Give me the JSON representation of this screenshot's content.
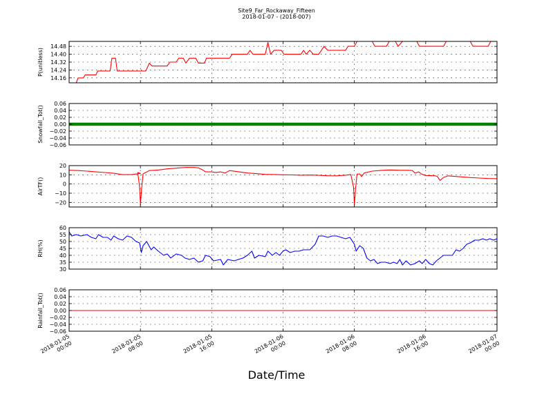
{
  "header": {
    "title": "Site9_Far_Rockaway_Fifteen",
    "subtitle": "2018-01-07 - (2018-007)"
  },
  "chart_data": {
    "type": "line",
    "title": "Site9_Far_Rockaway_Fifteen",
    "subtitle": "2018-01-07 - (2018-007)",
    "xlabel": "Date/Time",
    "x_range_hours": [
      0,
      48
    ],
    "x_ticks": [
      {
        "hours": 0,
        "label": "2018-01-05\n00:00"
      },
      {
        "hours": 8,
        "label": "2018-01-05\n08:00"
      },
      {
        "hours": 16,
        "label": "2018-01-05\n16:00"
      },
      {
        "hours": 24,
        "label": "2018-01-06\n00:00"
      },
      {
        "hours": 32,
        "label": "2018-01-06\n08:00"
      },
      {
        "hours": 40,
        "label": "2018-01-06\n16:00"
      },
      {
        "hours": 48,
        "label": "2018-01-07\n00:00"
      }
    ],
    "grid": true,
    "panels": [
      {
        "id": "p",
        "ylabel": "P(unitless)",
        "ylim": [
          14.11,
          14.53
        ],
        "yticks": [
          14.16,
          14.24,
          14.32,
          14.4,
          14.48
        ],
        "ytick_labels": [
          "14.16",
          "14.24",
          "14.32",
          "14.40",
          "14.48"
        ],
        "color": "#ff0000",
        "style": "line",
        "series": [
          [
            0,
            14.11
          ],
          [
            0.8,
            14.11
          ],
          [
            1.0,
            14.16
          ],
          [
            1.6,
            14.16
          ],
          [
            1.8,
            14.19
          ],
          [
            3.0,
            14.19
          ],
          [
            3.2,
            14.23
          ],
          [
            4.6,
            14.23
          ],
          [
            4.8,
            14.36
          ],
          [
            5.2,
            14.36
          ],
          [
            5.4,
            14.23
          ],
          [
            8.6,
            14.23
          ],
          [
            9.0,
            14.31
          ],
          [
            9.3,
            14.28
          ],
          [
            11.0,
            14.28
          ],
          [
            11.3,
            14.32
          ],
          [
            12.0,
            14.32
          ],
          [
            12.3,
            14.36
          ],
          [
            12.8,
            14.36
          ],
          [
            13.1,
            14.31
          ],
          [
            13.5,
            14.36
          ],
          [
            14.2,
            14.36
          ],
          [
            14.5,
            14.31
          ],
          [
            15.2,
            14.31
          ],
          [
            15.4,
            14.36
          ],
          [
            18.0,
            14.36
          ],
          [
            18.3,
            14.4
          ],
          [
            20.0,
            14.4
          ],
          [
            20.3,
            14.44
          ],
          [
            20.6,
            14.4
          ],
          [
            22.0,
            14.4
          ],
          [
            22.3,
            14.52
          ],
          [
            22.6,
            14.4
          ],
          [
            23.0,
            14.44
          ],
          [
            23.8,
            14.44
          ],
          [
            24.1,
            14.4
          ],
          [
            26.0,
            14.4
          ],
          [
            26.3,
            14.44
          ],
          [
            26.6,
            14.4
          ],
          [
            27.0,
            14.44
          ],
          [
            27.4,
            14.4
          ],
          [
            28.0,
            14.4
          ],
          [
            28.3,
            14.44
          ],
          [
            28.6,
            14.48
          ],
          [
            29.0,
            14.44
          ],
          [
            31.0,
            14.44
          ],
          [
            31.3,
            14.48
          ],
          [
            32.0,
            14.48
          ],
          [
            32.3,
            14.53
          ],
          [
            34.0,
            14.53
          ],
          [
            34.3,
            14.48
          ],
          [
            35.6,
            14.48
          ],
          [
            35.9,
            14.53
          ],
          [
            36.6,
            14.53
          ],
          [
            36.9,
            14.48
          ],
          [
            37.4,
            14.53
          ],
          [
            39.0,
            14.53
          ],
          [
            39.3,
            14.48
          ],
          [
            42.0,
            14.48
          ],
          [
            42.3,
            14.53
          ],
          [
            45.0,
            14.53
          ],
          [
            45.3,
            14.48
          ],
          [
            47.0,
            14.48
          ],
          [
            47.3,
            14.53
          ],
          [
            48.0,
            14.53
          ]
        ]
      },
      {
        "id": "snow",
        "ylabel": "Snowfall_Tot()",
        "ylim": [
          -0.06,
          0.06
        ],
        "yticks": [
          -0.06,
          -0.04,
          -0.02,
          0.0,
          0.02,
          0.04,
          0.06
        ],
        "ytick_labels": [
          "−0.06",
          "−0.04",
          "−0.02",
          "0.00",
          "0.02",
          "0.04",
          "0.06"
        ],
        "color": "#008000",
        "style": "thick",
        "series": [
          [
            0,
            0
          ],
          [
            48,
            0
          ]
        ]
      },
      {
        "id": "air",
        "ylabel": "AirTF()",
        "ylim": [
          -25,
          20
        ],
        "yticks": [
          -20,
          -10,
          0,
          10,
          20
        ],
        "ytick_labels": [
          "−20",
          "−10",
          "0",
          "10",
          "20"
        ],
        "color": "#ff0000",
        "style": "line",
        "series": [
          [
            0,
            15
          ],
          [
            1,
            14.6
          ],
          [
            2,
            14
          ],
          [
            3,
            13.2
          ],
          [
            4,
            12.5
          ],
          [
            5,
            11.7
          ],
          [
            6,
            10.2
          ],
          [
            7,
            10.2
          ],
          [
            8,
            11.5
          ],
          [
            7.7,
            12.5
          ],
          [
            7.9,
            -3
          ],
          [
            8.0,
            -23
          ],
          [
            8.15,
            -3
          ],
          [
            8.3,
            11
          ],
          [
            9,
            14.6
          ],
          [
            10,
            15.2
          ],
          [
            11,
            16.5
          ],
          [
            12,
            17.2
          ],
          [
            13,
            18
          ],
          [
            14,
            18
          ],
          [
            14.5,
            17.5
          ],
          [
            15,
            15.2
          ],
          [
            15.3,
            13.2
          ],
          [
            16,
            13.2
          ],
          [
            16.5,
            12.6
          ],
          [
            17,
            13.2
          ],
          [
            17.5,
            12
          ],
          [
            18,
            14.6
          ],
          [
            19,
            13.3
          ],
          [
            20,
            12
          ],
          [
            21,
            11.3
          ],
          [
            22,
            10.5
          ],
          [
            23,
            10.3
          ],
          [
            24,
            10
          ],
          [
            25,
            9.9
          ],
          [
            26,
            9.6
          ],
          [
            27,
            9.7
          ],
          [
            28,
            9.4
          ],
          [
            29,
            9.0
          ],
          [
            30,
            8.9
          ],
          [
            31,
            9.6
          ],
          [
            31.6,
            10.3
          ],
          [
            31.9,
            -3
          ],
          [
            32.0,
            -23
          ],
          [
            32.15,
            -3
          ],
          [
            32.3,
            10.8
          ],
          [
            32.6,
            11
          ],
          [
            32.8,
            8
          ],
          [
            33.1,
            12
          ],
          [
            34,
            14
          ],
          [
            35,
            14.8
          ],
          [
            36,
            15.3
          ],
          [
            37,
            15
          ],
          [
            38,
            14.9
          ],
          [
            38.5,
            14.6
          ],
          [
            38.8,
            11.8
          ],
          [
            39.2,
            13.2
          ],
          [
            39.6,
            10.5
          ],
          [
            40,
            9.2
          ],
          [
            41,
            9
          ],
          [
            41.3,
            8.4
          ],
          [
            41.6,
            3.8
          ],
          [
            42,
            7.2
          ],
          [
            42.5,
            8.8
          ],
          [
            43,
            8.5
          ],
          [
            44,
            7.8
          ],
          [
            45,
            7
          ],
          [
            46,
            6.5
          ],
          [
            47,
            6
          ],
          [
            48,
            5.8
          ]
        ]
      },
      {
        "id": "rh",
        "ylabel": "RH(%)",
        "ylim": [
          30,
          60
        ],
        "yticks": [
          30,
          35,
          40,
          45,
          50,
          55,
          60
        ],
        "ytick_labels": [
          "30",
          "35",
          "40",
          "45",
          "50",
          "55",
          "60"
        ],
        "color": "#0000ff",
        "style": "line",
        "series": [
          [
            0,
            57
          ],
          [
            0.3,
            54
          ],
          [
            0.8,
            55
          ],
          [
            1.3,
            54
          ],
          [
            2,
            55
          ],
          [
            2.5,
            53
          ],
          [
            3,
            52
          ],
          [
            3.3,
            55
          ],
          [
            3.8,
            53
          ],
          [
            4.3,
            53
          ],
          [
            4.7,
            51
          ],
          [
            5,
            54
          ],
          [
            5.5,
            52
          ],
          [
            6,
            51
          ],
          [
            6.5,
            54
          ],
          [
            7,
            53
          ],
          [
            7.5,
            50
          ],
          [
            7.9,
            49
          ],
          [
            8.1,
            42
          ],
          [
            8.3,
            47
          ],
          [
            8.7,
            50
          ],
          [
            9.2,
            44
          ],
          [
            9.5,
            46
          ],
          [
            10,
            43
          ],
          [
            10.6,
            40
          ],
          [
            11,
            41
          ],
          [
            11.4,
            38
          ],
          [
            12,
            41
          ],
          [
            12.6,
            40
          ],
          [
            13,
            38
          ],
          [
            13.5,
            37
          ],
          [
            14,
            38
          ],
          [
            14.5,
            35
          ],
          [
            15,
            36
          ],
          [
            15.3,
            40
          ],
          [
            15.8,
            39
          ],
          [
            16.2,
            36
          ],
          [
            17,
            37
          ],
          [
            17.3,
            33
          ],
          [
            17.8,
            37
          ],
          [
            18.5,
            36
          ],
          [
            19,
            37
          ],
          [
            19.5,
            38
          ],
          [
            20,
            40
          ],
          [
            20.5,
            43
          ],
          [
            20.8,
            38
          ],
          [
            21.3,
            40
          ],
          [
            22,
            39
          ],
          [
            22.3,
            43
          ],
          [
            22.8,
            40
          ],
          [
            23.2,
            42
          ],
          [
            23.6,
            40
          ],
          [
            24,
            43
          ],
          [
            24.3,
            44
          ],
          [
            24.8,
            42
          ],
          [
            25.3,
            43
          ],
          [
            25.8,
            43
          ],
          [
            26.3,
            44
          ],
          [
            27,
            44
          ],
          [
            27.6,
            48
          ],
          [
            28,
            54
          ],
          [
            28.5,
            54
          ],
          [
            29,
            53
          ],
          [
            29.5,
            54
          ],
          [
            30,
            54
          ],
          [
            30.5,
            53
          ],
          [
            31,
            52
          ],
          [
            31.5,
            53
          ],
          [
            32.0,
            48
          ],
          [
            32.2,
            43
          ],
          [
            32.6,
            47
          ],
          [
            33,
            45
          ],
          [
            33.4,
            38
          ],
          [
            33.8,
            36
          ],
          [
            34.2,
            37
          ],
          [
            34.6,
            34
          ],
          [
            35,
            35
          ],
          [
            35.5,
            35
          ],
          [
            36,
            34
          ],
          [
            36.4,
            35
          ],
          [
            36.8,
            34
          ],
          [
            37.1,
            37
          ],
          [
            37.4,
            33
          ],
          [
            37.8,
            36
          ],
          [
            38.3,
            33
          ],
          [
            38.8,
            34
          ],
          [
            39.3,
            36
          ],
          [
            39.6,
            34
          ],
          [
            40,
            37
          ],
          [
            40.4,
            34
          ],
          [
            40.8,
            33
          ],
          [
            41.2,
            36
          ],
          [
            41.6,
            38
          ],
          [
            42,
            40
          ],
          [
            42.5,
            40
          ],
          [
            43,
            40
          ],
          [
            43.4,
            44
          ],
          [
            43.8,
            43
          ],
          [
            44.2,
            45
          ],
          [
            44.6,
            48
          ],
          [
            45,
            49
          ],
          [
            45.5,
            51
          ],
          [
            46,
            51
          ],
          [
            46.4,
            52
          ],
          [
            46.8,
            51
          ],
          [
            47.2,
            52
          ],
          [
            47.6,
            51
          ],
          [
            48,
            52
          ]
        ]
      },
      {
        "id": "rain",
        "ylabel": "Rainfall_Tot()",
        "ylim": [
          -0.06,
          0.06
        ],
        "yticks": [
          -0.06,
          -0.04,
          -0.02,
          0.0,
          0.02,
          0.04,
          0.06
        ],
        "ytick_labels": [
          "−0.06",
          "−0.04",
          "−0.02",
          "0.00",
          "0.02",
          "0.04",
          "0.06"
        ],
        "color": "#ff0000",
        "style": "line",
        "series": [
          [
            0,
            0
          ],
          [
            48,
            0
          ]
        ]
      }
    ]
  }
}
